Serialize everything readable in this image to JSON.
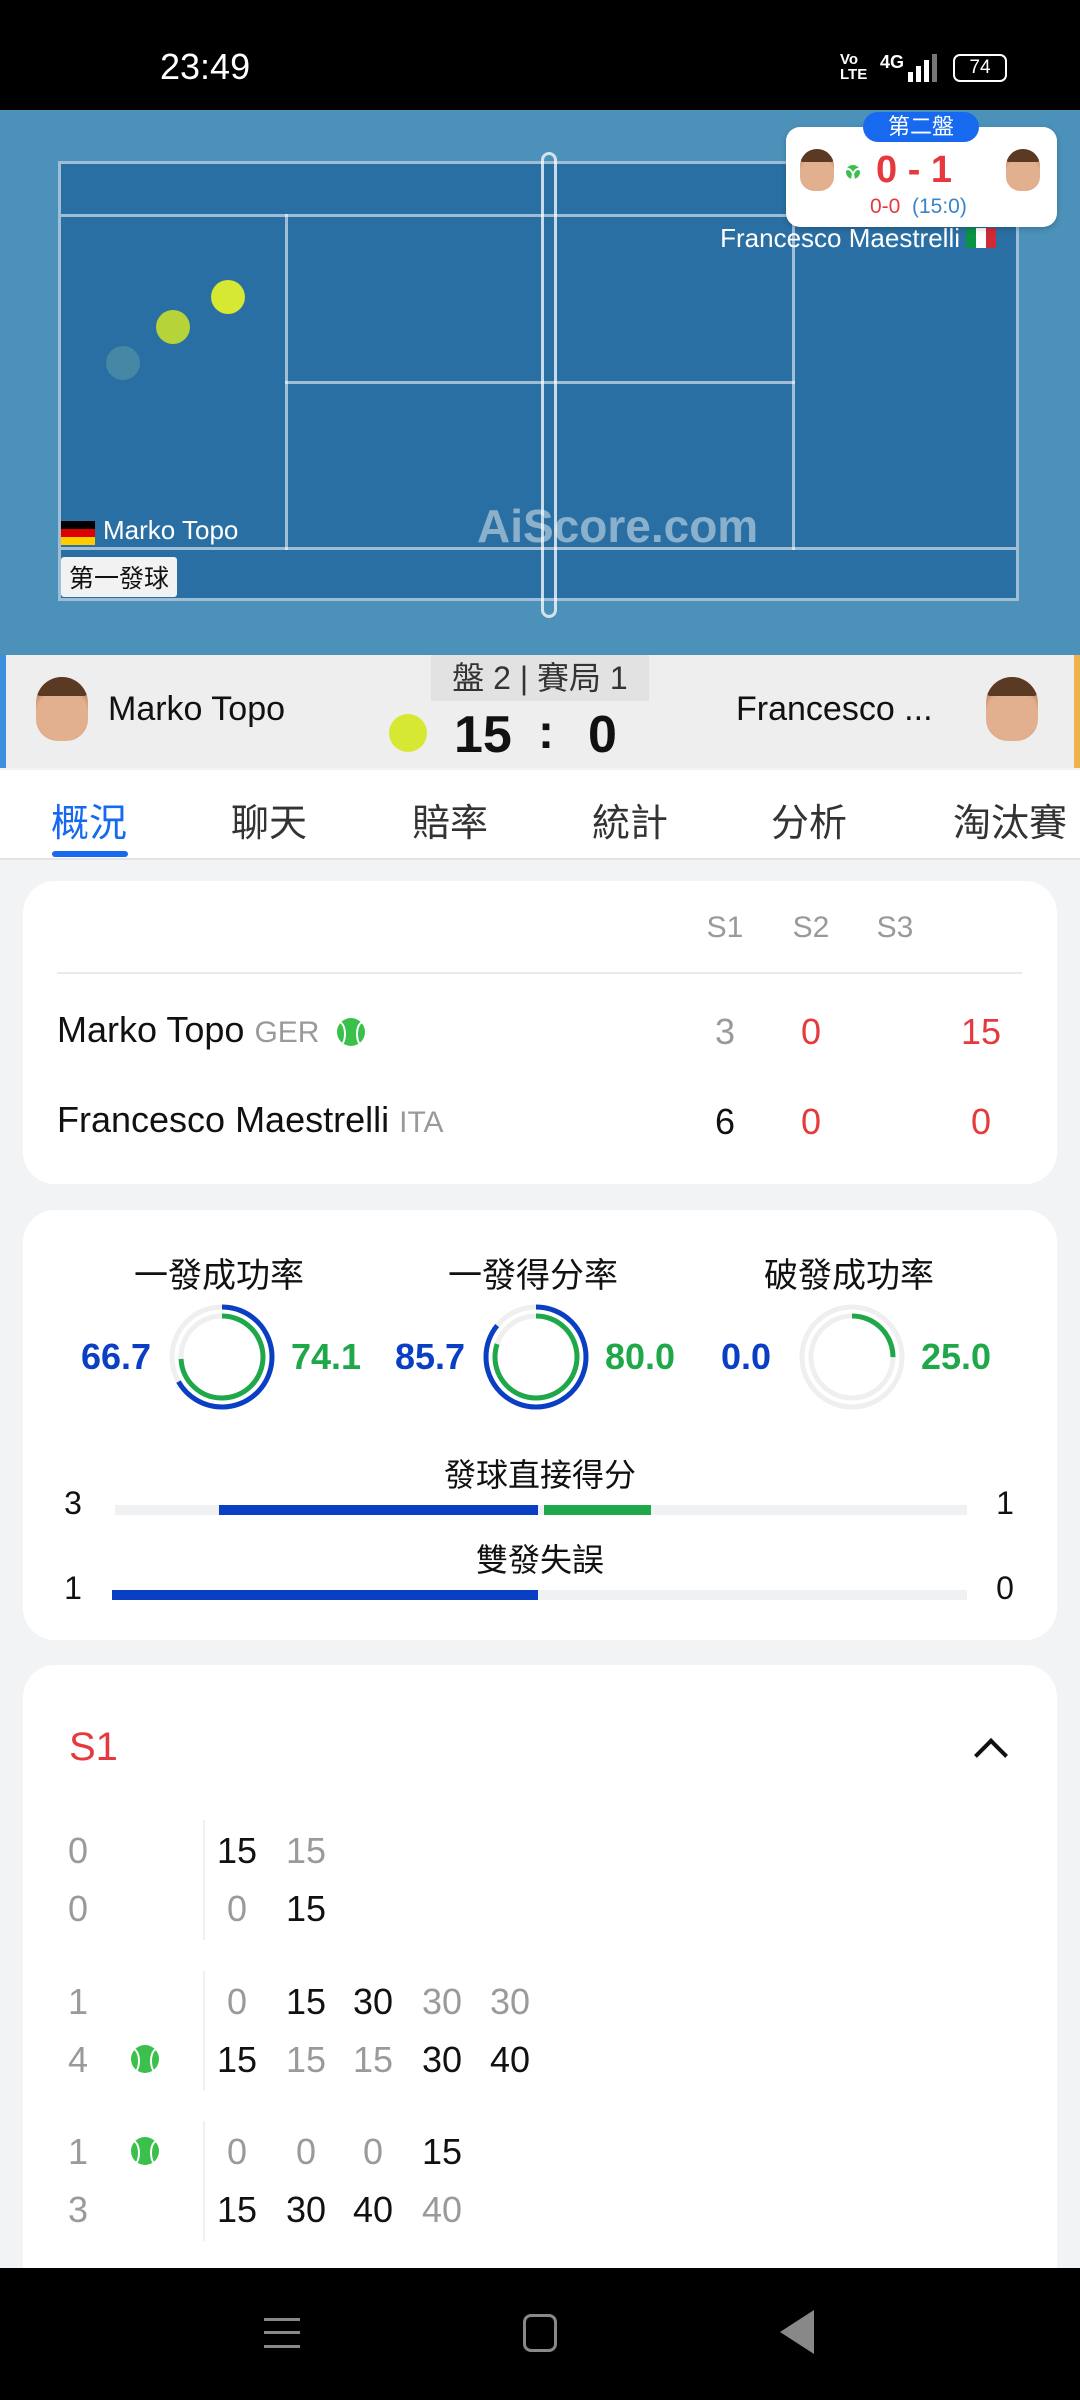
{
  "status_bar": {
    "time": "23:49",
    "volte": "Vo LTE",
    "network": "4G",
    "battery": "74"
  },
  "court": {
    "watermark": "AiScore.com",
    "home_name": "Marko Topo",
    "away_name": "Francesco Maestrelli",
    "serve_label": "第一發球",
    "popup": {
      "set_badge": "第二盤",
      "score": "0 - 1",
      "sub_games": "0-0",
      "sub_points": "(15:0)"
    }
  },
  "scoreboard": {
    "home": "Marko Topo",
    "away": "Francesco ...",
    "period": "盤 2 | 賽局 1",
    "home_points": "15",
    "separator": ":",
    "away_points": "0"
  },
  "tabs": [
    "概況",
    "聊天",
    "賠率",
    "統計",
    "分析",
    "淘汰賽"
  ],
  "active_tab": 0,
  "set_table": {
    "headers": [
      "S1",
      "S2",
      "S3"
    ],
    "rows": [
      {
        "name": "Marko Topo",
        "country": "GER",
        "serving": true,
        "scores": [
          "3",
          "0",
          "15"
        ]
      },
      {
        "name": "Francesco Maestrelli",
        "country": "ITA",
        "serving": false,
        "scores": [
          "6",
          "0",
          "0"
        ]
      }
    ]
  },
  "stats": {
    "rings": [
      {
        "label": "一發成功率",
        "home": 66.7,
        "away": 74.1,
        "home_text": "66.7",
        "away_text": "74.1"
      },
      {
        "label": "一發得分率",
        "home": 85.7,
        "away": 80.0,
        "home_text": "85.7",
        "away_text": "80.0"
      },
      {
        "label": "破發成功率",
        "home": 0.0,
        "away": 25.0,
        "home_text": "0.0",
        "away_text": "25.0"
      }
    ],
    "bars": [
      {
        "label": "發球直接得分",
        "home": 3,
        "away": 1,
        "home_text": "3",
        "away_text": "1"
      },
      {
        "label": "雙發失誤",
        "home": 1,
        "away": 0,
        "home_text": "1",
        "away_text": "0"
      }
    ],
    "colors": {
      "home": "#0a3fc4",
      "away": "#1fa84a"
    }
  },
  "point_by_point": {
    "set_label": "S1",
    "games": [
      {
        "top_games": "0",
        "bottom_games": "0",
        "server": null,
        "top": [
          {
            "v": "15",
            "won": true
          },
          {
            "v": "15",
            "won": false
          }
        ],
        "bottom": [
          {
            "v": "0",
            "won": false
          },
          {
            "v": "15",
            "won": true
          }
        ]
      },
      {
        "top_games": "1",
        "bottom_games": "4",
        "server": "bottom",
        "top": [
          {
            "v": "0",
            "won": false
          },
          {
            "v": "15",
            "won": true
          },
          {
            "v": "30",
            "won": true
          },
          {
            "v": "30",
            "won": false
          },
          {
            "v": "30",
            "won": false
          }
        ],
        "bottom": [
          {
            "v": "15",
            "won": true
          },
          {
            "v": "15",
            "won": false
          },
          {
            "v": "15",
            "won": false
          },
          {
            "v": "30",
            "won": true
          },
          {
            "v": "40",
            "won": true
          }
        ]
      },
      {
        "top_games": "1",
        "bottom_games": "3",
        "server": "top",
        "top": [
          {
            "v": "0",
            "won": false
          },
          {
            "v": "0",
            "won": false
          },
          {
            "v": "0",
            "won": false
          },
          {
            "v": "15",
            "won": true
          }
        ],
        "bottom": [
          {
            "v": "15",
            "won": true
          },
          {
            "v": "30",
            "won": true
          },
          {
            "v": "40",
            "won": true
          },
          {
            "v": "40",
            "won": false
          }
        ]
      }
    ]
  }
}
